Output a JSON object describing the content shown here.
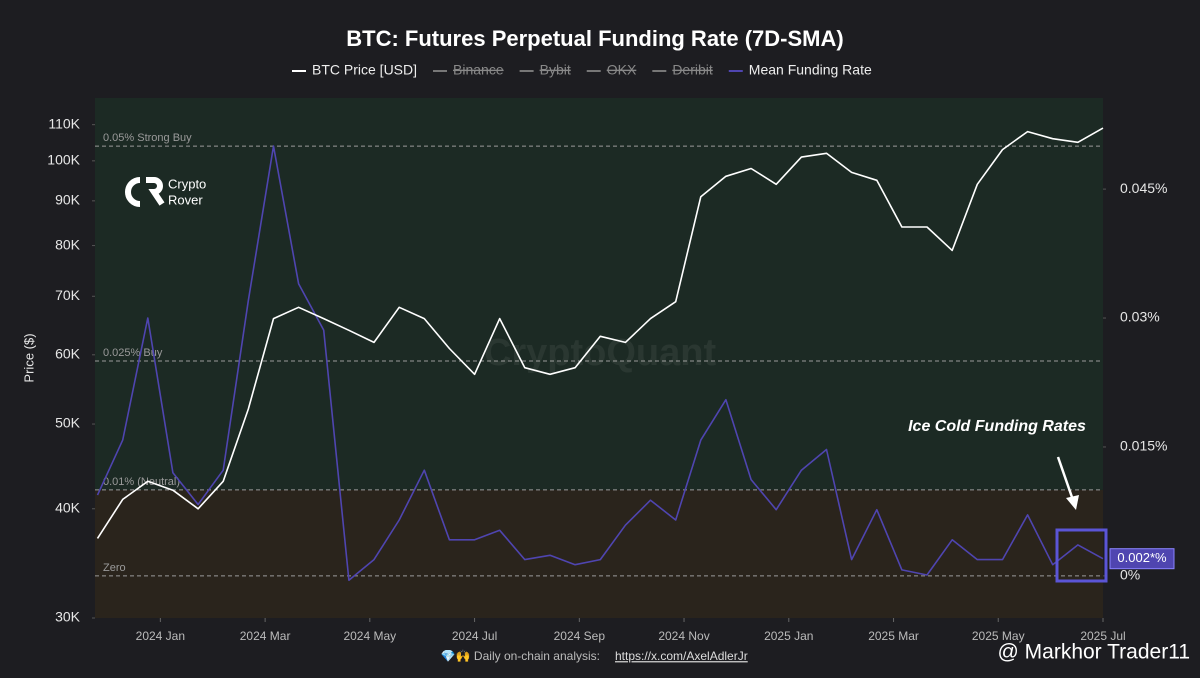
{
  "chart_data": {
    "type": "line",
    "title": "BTC: Futures Perpetual Funding Rate (7D-SMA)",
    "y_label": "Price ($)",
    "log_y": true,
    "x": [
      2023.9,
      2023.94,
      2023.98,
      2024.02,
      2024.06,
      2024.1,
      2024.14,
      2024.18,
      2024.22,
      2024.26,
      2024.3,
      2024.34,
      2024.38,
      2024.42,
      2024.46,
      2024.5,
      2024.54,
      2024.58,
      2024.62,
      2024.66,
      2024.7,
      2024.74,
      2024.78,
      2024.82,
      2024.86,
      2024.9,
      2024.94,
      2024.98,
      2025.02,
      2025.06,
      2025.1,
      2025.14,
      2025.18,
      2025.22,
      2025.26,
      2025.3,
      2025.34,
      2025.38,
      2025.42,
      2025.46,
      2025.5
    ],
    "xlim": [
      2023.896,
      2025.5
    ],
    "xticks": [
      {
        "value": 2024.0,
        "label": "2024 Jan"
      },
      {
        "value": 2024.1667,
        "label": "2024 Mar"
      },
      {
        "value": 2024.3333,
        "label": "2024 May"
      },
      {
        "value": 2024.5,
        "label": "2024 Jul"
      },
      {
        "value": 2024.6667,
        "label": "2024 Sep"
      },
      {
        "value": 2024.8333,
        "label": "2024 Nov"
      },
      {
        "value": 2025.0,
        "label": "2025 Jan"
      },
      {
        "value": 2025.1667,
        "label": "2025 Mar"
      },
      {
        "value": 2025.3333,
        "label": "2025 May"
      },
      {
        "value": 2025.5,
        "label": "2025 Jul"
      }
    ],
    "ylim": [
      30000,
      118000
    ],
    "yticks": [
      {
        "value": 30000,
        "label": "30K"
      },
      {
        "value": 40000,
        "label": "40K"
      },
      {
        "value": 50000,
        "label": "50K"
      },
      {
        "value": 60000,
        "label": "60K"
      },
      {
        "value": 70000,
        "label": "70K"
      },
      {
        "value": 80000,
        "label": "80K"
      },
      {
        "value": 90000,
        "label": "90K"
      },
      {
        "value": 100000,
        "label": "100K"
      },
      {
        "value": 110000,
        "label": "110K"
      }
    ],
    "y2lim": [
      -0.0049,
      0.0556
    ],
    "y2ticks": [
      {
        "value": 0,
        "label": "0%"
      },
      {
        "value": 0.015,
        "label": "0.015%"
      },
      {
        "value": 0.03,
        "label": "0.03%"
      },
      {
        "value": 0.045,
        "label": "0.045%"
      }
    ],
    "series": [
      {
        "name": "BTC Price [USD]",
        "color": "#ffffff",
        "values": [
          37000,
          41000,
          43000,
          42000,
          40000,
          43000,
          52000,
          66000,
          68000,
          66000,
          64000,
          62000,
          68000,
          66000,
          61000,
          57000,
          66000,
          58000,
          57000,
          58000,
          63000,
          62000,
          66000,
          69000,
          91000,
          96000,
          98000,
          94000,
          101000,
          102000,
          97000,
          95000,
          84000,
          84000,
          79000,
          94000,
          103000,
          108000,
          106000,
          105000,
          109000
        ]
      },
      {
        "name": "Mean Funding Rate",
        "color": "#4f45b0",
        "axis": "y2",
        "values": [
          0.0094,
          0.0158,
          0.03,
          0.012,
          0.0083,
          0.0123,
          0.032,
          0.05,
          0.034,
          0.0286,
          -0.0005,
          0.0019,
          0.0065,
          0.0123,
          0.0042,
          0.0042,
          0.0053,
          0.0019,
          0.0024,
          0.0013,
          0.0019,
          0.0059,
          0.0088,
          0.0065,
          0.0158,
          0.0205,
          0.0112,
          0.0077,
          0.0123,
          0.0147,
          0.0019,
          0.0077,
          0.0007,
          0.0001,
          0.0042,
          0.0019,
          0.0019,
          0.0071,
          0.0013,
          0.0036,
          0.002
        ],
        "value_labels": [
          null,
          null,
          null,
          null,
          null,
          null,
          null,
          null,
          null,
          null,
          null,
          null,
          null,
          null,
          null,
          null,
          null,
          null,
          null,
          null,
          null,
          null,
          null,
          null,
          null,
          null,
          null,
          null,
          null,
          null,
          null,
          null,
          null,
          null,
          null,
          null,
          null,
          null,
          null,
          null,
          "0.002*%"
        ]
      }
    ],
    "disabled_series": [
      "Binance",
      "Bybit",
      "OKX",
      "Deribit"
    ],
    "reference_lines": [
      {
        "value": 0.05,
        "label": "0.05% Strong Buy"
      },
      {
        "value": 0.025,
        "label": "0.025% Buy"
      },
      {
        "value": 0.01,
        "label": "0.01% (Neutral)"
      },
      {
        "value": 0,
        "label": "Zero"
      }
    ],
    "annotation": "Ice Cold Funding Rates",
    "logo": [
      "Crypto",
      "Rover"
    ],
    "watermark": "CryptoQuant",
    "footer": {
      "text": "💎🙌 Daily on-chain analysis:",
      "link": "https://x.com/AxelAdlerJr"
    },
    "credit": "@ Markhor Trader11"
  }
}
